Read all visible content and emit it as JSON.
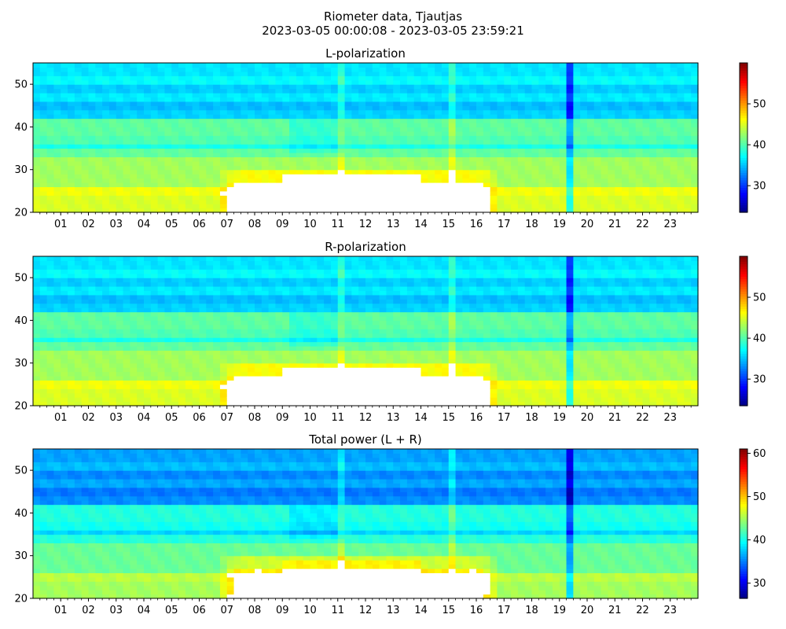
{
  "figure": {
    "title_line1": "Riometer data, Tjautjas",
    "title_line2": "2023-03-05 00:00:08 - 2023-03-05 23:59:21"
  },
  "chart_data": [
    {
      "type": "heatmap",
      "title": "L-polarization",
      "colormap": "jet",
      "x_tick_labels": [
        "01",
        "02",
        "03",
        "04",
        "05",
        "06",
        "07",
        "08",
        "09",
        "10",
        "11",
        "12",
        "13",
        "14",
        "15",
        "16",
        "17",
        "18",
        "19",
        "20",
        "21",
        "22",
        "23"
      ],
      "x_range_hours": [
        0,
        24
      ],
      "y_range": [
        20,
        55
      ],
      "y_ticks": [
        20,
        30,
        40,
        50
      ],
      "colorbar_range": [
        23.5,
        60
      ],
      "colorbar_ticks": [
        30,
        40,
        50
      ]
    },
    {
      "type": "heatmap",
      "title": "R-polarization",
      "colormap": "jet",
      "x_tick_labels": [
        "01",
        "02",
        "03",
        "04",
        "05",
        "06",
        "07",
        "08",
        "09",
        "10",
        "11",
        "12",
        "13",
        "14",
        "15",
        "16",
        "17",
        "18",
        "19",
        "20",
        "21",
        "22",
        "23"
      ],
      "x_range_hours": [
        0,
        24
      ],
      "y_range": [
        20,
        55
      ],
      "y_ticks": [
        20,
        30,
        40,
        50
      ],
      "colorbar_range": [
        23.5,
        60
      ],
      "colorbar_ticks": [
        30,
        40,
        50
      ]
    },
    {
      "type": "heatmap",
      "title": "Total power (L + R)",
      "colormap": "jet",
      "x_tick_labels": [
        "01",
        "02",
        "03",
        "04",
        "05",
        "06",
        "07",
        "08",
        "09",
        "10",
        "11",
        "12",
        "13",
        "14",
        "15",
        "16",
        "17",
        "18",
        "19",
        "20",
        "21",
        "22",
        "23"
      ],
      "x_range_hours": [
        0,
        24
      ],
      "y_range": [
        20,
        55
      ],
      "y_ticks": [
        20,
        30,
        40,
        50
      ],
      "colorbar_range": [
        26.5,
        61
      ],
      "colorbar_ticks": [
        30,
        40,
        50,
        60
      ]
    }
  ]
}
